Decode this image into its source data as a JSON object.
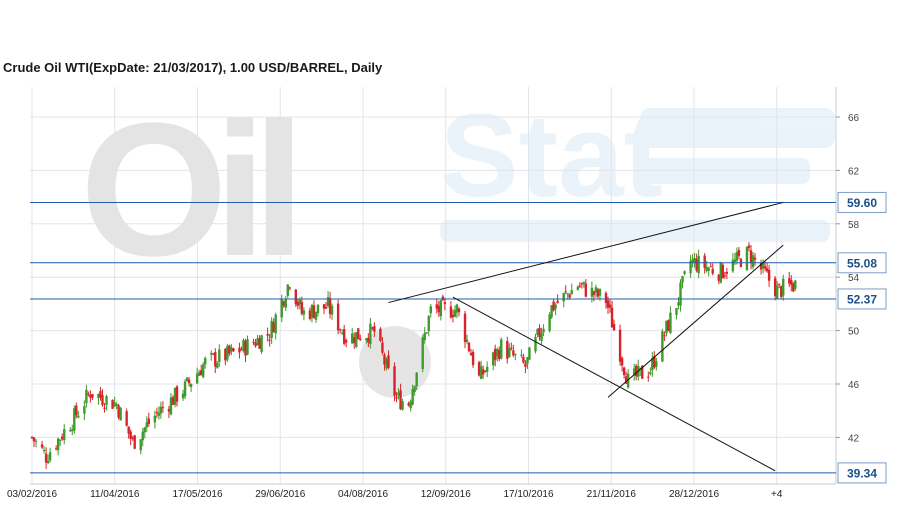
{
  "chart_data": {
    "type": "candlestick",
    "title": "Crude Oil WTI(ExpDate: 21/03/2017), 1.00 USD/BARREL, Daily",
    "watermark": {
      "brand_part1": "Oil",
      "brand_part2": "Stat"
    },
    "x_tick_labels": [
      "03/02/2016",
      "11/04/2016",
      "17/05/2016",
      "29/06/2016",
      "04/08/2016",
      "12/09/2016",
      "17/10/2016",
      "21/11/2016",
      "28/12/2016",
      "+4"
    ],
    "y_ticks": [
      42,
      46,
      50,
      54,
      58,
      62,
      66
    ],
    "ylim": [
      38.4,
      68
    ],
    "grid": true,
    "colors": {
      "up": "#3e9a2b",
      "down": "#d8232a",
      "level_line": "#1f5faa",
      "trend_line": "#111111",
      "grid": "#e1e4ea"
    },
    "levels": [
      {
        "value": 59.6,
        "label": "59.60"
      },
      {
        "value": 55.08,
        "label": "55.08"
      },
      {
        "value": 52.37,
        "label": "52.37"
      },
      {
        "value": 39.34,
        "label": "39.34"
      }
    ],
    "trend_lines": [
      {
        "from": [
          "29/07/2016",
          52.1
        ],
        "to": [
          "10/02/2017",
          59.6
        ]
      },
      {
        "from": [
          "30/08/2016",
          52.5
        ],
        "to": [
          "06/02/2017",
          39.5
        ]
      },
      {
        "from": [
          "15/11/2016",
          45.0
        ],
        "to": [
          "10/02/2017",
          56.4
        ]
      }
    ],
    "series_anchor_closes": [
      [
        "03/02/2016",
        42
      ],
      [
        "10/02/2016",
        40.6
      ],
      [
        "24/02/2016",
        43.5
      ],
      [
        "03/03/2016",
        45.4
      ],
      [
        "16/03/2016",
        44.5
      ],
      [
        "24/03/2016",
        41.6
      ],
      [
        "05/04/2016",
        43.8
      ],
      [
        "19/04/2016",
        45.7
      ],
      [
        "29/04/2016",
        47.6
      ],
      [
        "13/05/2016",
        48.3
      ],
      [
        "31/05/2016",
        49.8
      ],
      [
        "10/06/2016",
        53.8
      ],
      [
        "16/06/2016",
        51.3
      ],
      [
        "29/06/2016",
        51.8
      ],
      [
        "08/07/2016",
        49.5
      ],
      [
        "22/07/2016",
        49.9
      ],
      [
        "02/08/2016",
        44.9
      ],
      [
        "08/08/2016",
        44.6
      ],
      [
        "19/08/2016",
        51.5
      ],
      [
        "01/09/2016",
        51.6
      ],
      [
        "12/09/2016",
        46.4
      ],
      [
        "23/09/2016",
        48.8
      ],
      [
        "05/10/2016",
        47.3
      ],
      [
        "17/10/2016",
        51.6
      ],
      [
        "31/10/2016",
        53.4
      ],
      [
        "14/11/2016",
        52.3
      ],
      [
        "25/11/2016",
        46.2
      ],
      [
        "06/12/2016",
        47.1
      ],
      [
        "19/12/2016",
        52.0
      ],
      [
        "26/12/2016",
        55.2
      ],
      [
        "10/01/2017",
        54.4
      ],
      [
        "24/01/2017",
        55.8
      ],
      [
        "07/02/2017",
        53.0
      ],
      [
        "17/02/2017",
        53.5
      ]
    ]
  }
}
